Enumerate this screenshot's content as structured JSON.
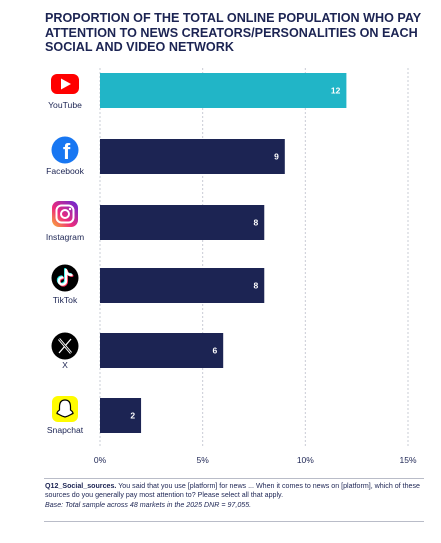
{
  "chart_data": {
    "type": "bar",
    "orientation": "horizontal",
    "title": "PROPORTION OF THE TOTAL ONLINE POPULATION WHO PAY ATTENTION TO NEWS CREATORS/PERSONALITIES ON EACH SOCIAL AND VIDEO NETWORK",
    "categories": [
      "YouTube",
      "Facebook",
      "Instagram",
      "TikTok",
      "X",
      "Snapchat"
    ],
    "values": [
      12,
      9,
      8,
      8,
      6,
      2
    ],
    "data_labels": [
      "12",
      "9",
      "8",
      "8",
      "6",
      "2"
    ],
    "xlim": [
      0,
      15
    ],
    "xticks": [
      0,
      5,
      10,
      15
    ],
    "xtick_labels": [
      "0%",
      "5%",
      "10%",
      "15%"
    ],
    "grid": "vertical",
    "colors": {
      "highlight": "#21b5c7",
      "bar": "#1c2453",
      "grid": "#c9ccd6",
      "text": "#1c2453"
    },
    "icons": [
      "youtube-icon",
      "facebook-icon",
      "instagram-icon",
      "tiktok-icon",
      "x-icon",
      "snapchat-icon"
    ]
  },
  "note": {
    "question": "Q12_Social_sources.",
    "text": " You said that you use [platform] for news ... When it comes to news on [platform], which of these sources do you generally pay most attention to? Please select all that apply.",
    "base": "Base: Total sample across 48 markets in the 2025 DNR = 97,055."
  }
}
